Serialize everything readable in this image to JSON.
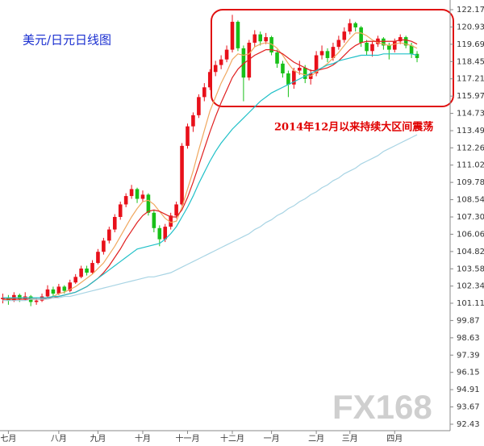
{
  "chart_data": {
    "type": "candlestick",
    "title": "美元/日元日线图",
    "title_color": "#1a2fd0",
    "annotation": "2014年12月以来持续大区间震荡",
    "annotation_color": "#e00000",
    "watermark": "FX168",
    "up_color": "#e8101a",
    "down_color": "#18c018",
    "ylim": [
      92.43,
      122.17
    ],
    "yticks": [
      122.17,
      {
        "value": 120.93,
        "label": "120.93"
      },
      119.69,
      118.45,
      117.21,
      115.97,
      114.73,
      113.49,
      112.26,
      111.02,
      109.78,
      108.54,
      {
        "value": 107.3,
        "label": "107.30"
      },
      106.06,
      104.82,
      103.58,
      102.34,
      101.11,
      99.87,
      98.63,
      97.39,
      96.15,
      94.91,
      93.67,
      92.43
    ],
    "categories": [
      null,
      "七月",
      null,
      null,
      null,
      null,
      null,
      null,
      null,
      null,
      "八月",
      null,
      null,
      null,
      null,
      null,
      null,
      "九月",
      null,
      null,
      null,
      null,
      null,
      null,
      null,
      "十月",
      null,
      null,
      null,
      null,
      null,
      null,
      null,
      "十一月",
      null,
      null,
      null,
      null,
      null,
      null,
      null,
      "十二月",
      null,
      null,
      null,
      null,
      null,
      null,
      "一月",
      null,
      null,
      null,
      null,
      null,
      null,
      null,
      "二月",
      null,
      null,
      null,
      null,
      null,
      "三月",
      null,
      null,
      null,
      null,
      null,
      null,
      null,
      "四月",
      null,
      null,
      null,
      null
    ],
    "ohlc": [
      [
        101.4,
        101.8,
        101.1,
        101.5
      ],
      [
        101.5,
        101.7,
        101.0,
        101.3
      ],
      [
        101.3,
        101.9,
        101.2,
        101.7
      ],
      [
        101.7,
        101.8,
        101.2,
        101.4
      ],
      [
        101.4,
        101.9,
        101.3,
        101.6
      ],
      [
        101.6,
        101.7,
        100.9,
        101.2
      ],
      [
        101.2,
        101.5,
        101.0,
        101.3
      ],
      [
        101.3,
        101.8,
        101.2,
        101.6
      ],
      [
        101.6,
        102.4,
        101.5,
        102.1
      ],
      [
        102.1,
        102.3,
        101.6,
        101.8
      ],
      [
        101.8,
        102.5,
        101.7,
        102.3
      ],
      [
        102.3,
        102.4,
        101.8,
        102.0
      ],
      [
        102.0,
        102.8,
        101.9,
        102.6
      ],
      [
        102.6,
        103.2,
        102.5,
        103.0
      ],
      [
        103.0,
        103.8,
        102.9,
        103.6
      ],
      [
        103.6,
        103.8,
        103.1,
        103.3
      ],
      [
        103.3,
        104.2,
        103.2,
        104.0
      ],
      [
        104.0,
        105.0,
        103.9,
        104.8
      ],
      [
        104.8,
        105.8,
        104.6,
        105.6
      ],
      [
        105.6,
        106.6,
        105.4,
        106.4
      ],
      [
        106.4,
        107.5,
        106.2,
        107.3
      ],
      [
        107.3,
        108.4,
        107.1,
        108.2
      ],
      [
        108.2,
        109.0,
        108.0,
        108.8
      ],
      [
        108.8,
        109.6,
        108.6,
        109.3
      ],
      [
        109.3,
        109.4,
        108.3,
        108.6
      ],
      [
        108.6,
        109.2,
        108.4,
        108.9
      ],
      [
        108.9,
        109.0,
        107.4,
        107.6
      ],
      [
        107.6,
        107.8,
        106.2,
        106.5
      ],
      [
        106.5,
        106.7,
        105.2,
        105.7
      ],
      [
        105.7,
        106.8,
        105.5,
        106.6
      ],
      [
        106.6,
        107.6,
        106.4,
        107.4
      ],
      [
        107.4,
        108.4,
        107.2,
        108.2
      ],
      [
        108.2,
        112.6,
        108.1,
        112.4
      ],
      [
        112.4,
        114.0,
        112.2,
        113.8
      ],
      [
        113.8,
        114.8,
        113.4,
        114.6
      ],
      [
        114.6,
        116.1,
        114.4,
        115.9
      ],
      [
        115.9,
        116.9,
        115.6,
        116.6
      ],
      [
        116.6,
        117.9,
        116.4,
        117.7
      ],
      [
        117.7,
        118.5,
        117.4,
        118.2
      ],
      [
        118.2,
        118.9,
        117.9,
        118.6
      ],
      [
        118.6,
        119.6,
        118.4,
        119.3
      ],
      [
        119.3,
        121.8,
        119.1,
        121.3
      ],
      [
        121.3,
        121.4,
        119.2,
        119.4
      ],
      [
        119.4,
        119.6,
        115.6,
        117.3
      ],
      [
        117.3,
        120.0,
        117.1,
        119.8
      ],
      [
        119.8,
        120.7,
        119.5,
        120.4
      ],
      [
        120.4,
        120.6,
        119.6,
        119.9
      ],
      [
        119.9,
        120.5,
        119.7,
        120.2
      ],
      [
        120.2,
        120.3,
        118.9,
        119.1
      ],
      [
        119.1,
        119.3,
        118.0,
        118.3
      ],
      [
        118.3,
        118.5,
        117.3,
        117.6
      ],
      [
        117.6,
        117.8,
        115.9,
        116.8
      ],
      [
        116.8,
        118.0,
        116.5,
        117.8
      ],
      [
        117.8,
        118.5,
        117.5,
        118.0
      ],
      [
        118.0,
        118.2,
        116.9,
        117.2
      ],
      [
        117.2,
        117.9,
        116.8,
        117.6
      ],
      [
        117.6,
        119.2,
        117.4,
        118.9
      ],
      [
        118.9,
        119.6,
        118.6,
        119.2
      ],
      [
        119.2,
        119.4,
        118.4,
        118.7
      ],
      [
        118.7,
        119.8,
        118.5,
        119.5
      ],
      [
        119.5,
        120.3,
        119.3,
        120.0
      ],
      [
        120.0,
        120.9,
        119.8,
        120.6
      ],
      [
        120.6,
        121.5,
        120.4,
        121.2
      ],
      [
        121.2,
        121.3,
        120.6,
        120.9
      ],
      [
        120.9,
        121.0,
        119.5,
        119.8
      ],
      [
        119.8,
        120.0,
        118.9,
        119.2
      ],
      [
        119.2,
        119.9,
        118.8,
        119.7
      ],
      [
        119.7,
        120.3,
        119.5,
        120.1
      ],
      [
        120.1,
        120.2,
        119.3,
        119.6
      ],
      [
        119.6,
        119.8,
        118.6,
        119.3
      ],
      [
        119.3,
        120.1,
        119.1,
        119.9
      ],
      [
        119.9,
        120.4,
        119.7,
        120.2
      ],
      [
        120.2,
        120.3,
        119.4,
        119.6
      ],
      [
        119.6,
        119.8,
        118.7,
        119.0
      ],
      [
        119.0,
        119.2,
        118.4,
        118.7
      ]
    ],
    "series": [
      {
        "color": "#f0a860",
        "values": [
          101.4,
          101.4,
          101.5,
          101.5,
          101.5,
          101.5,
          101.4,
          101.4,
          101.5,
          101.6,
          101.8,
          101.9,
          102.1,
          102.3,
          102.6,
          102.9,
          103.2,
          103.6,
          104.0,
          104.6,
          105.2,
          105.9,
          106.6,
          107.3,
          107.9,
          108.4,
          108.5,
          108.2,
          107.7,
          107.2,
          106.9,
          107.0,
          108.0,
          109.3,
          110.6,
          112.1,
          113.5,
          114.9,
          115.9,
          116.9,
          117.7,
          118.6,
          119.0,
          118.9,
          119.0,
          119.5,
          119.7,
          119.8,
          119.7,
          119.4,
          118.9,
          118.3,
          117.8,
          117.6,
          117.5,
          117.4,
          117.7,
          118.0,
          118.3,
          118.7,
          119.1,
          119.6,
          120.1,
          120.5,
          120.5,
          120.3,
          120.0,
          119.8,
          119.7,
          119.6,
          119.7,
          119.8,
          119.7,
          119.6,
          119.4
        ]
      },
      {
        "color": "#e02020",
        "values": [
          101.4,
          101.4,
          101.4,
          101.4,
          101.4,
          101.4,
          101.4,
          101.4,
          101.5,
          101.5,
          101.6,
          101.7,
          101.8,
          101.9,
          102.1,
          102.3,
          102.6,
          102.9,
          103.3,
          103.8,
          104.4,
          105.0,
          105.7,
          106.3,
          106.9,
          107.4,
          107.7,
          107.8,
          107.7,
          107.5,
          107.3,
          107.3,
          107.8,
          108.7,
          109.8,
          111.0,
          112.2,
          113.4,
          114.5,
          115.5,
          116.4,
          117.3,
          117.9,
          118.3,
          118.6,
          118.9,
          119.1,
          119.3,
          119.3,
          119.2,
          119.0,
          118.7,
          118.4,
          118.2,
          118.0,
          117.8,
          117.8,
          117.9,
          118.0,
          118.2,
          118.5,
          118.9,
          119.3,
          119.6,
          119.8,
          119.9,
          119.9,
          119.9,
          119.9,
          119.9,
          119.9,
          120.0,
          120.0,
          119.9,
          119.7
        ]
      },
      {
        "color": "#20c0c8",
        "values": [
          101.5,
          101.5,
          101.5,
          101.5,
          101.5,
          101.5,
          101.5,
          101.5,
          101.5,
          101.6,
          101.6,
          101.7,
          101.8,
          101.9,
          102.1,
          102.3,
          102.6,
          102.9,
          103.2,
          103.5,
          103.8,
          104.1,
          104.4,
          104.7,
          105.0,
          105.1,
          105.2,
          105.3,
          105.4,
          105.7,
          106.1,
          106.6,
          107.3,
          108.0,
          108.8,
          109.7,
          110.5,
          111.3,
          112.0,
          112.6,
          113.1,
          113.6,
          114.0,
          114.4,
          114.8,
          115.2,
          115.6,
          115.9,
          116.2,
          116.4,
          116.6,
          116.8,
          117.0,
          117.2,
          117.4,
          117.6,
          117.8,
          118.0,
          118.2,
          118.3,
          118.5,
          118.6,
          118.7,
          118.8,
          118.9,
          118.9,
          118.9,
          118.9,
          119.0,
          119.0,
          119.0,
          119.0,
          119.0,
          119.0,
          118.9
        ]
      },
      {
        "color": "#a8d4e4",
        "values": [
          101.3,
          101.3,
          101.3,
          101.3,
          101.3,
          101.4,
          101.4,
          101.4,
          101.4,
          101.5,
          101.5,
          101.6,
          101.6,
          101.7,
          101.8,
          101.9,
          102.0,
          102.1,
          102.2,
          102.3,
          102.4,
          102.5,
          102.6,
          102.7,
          102.8,
          102.9,
          103.0,
          103.0,
          103.1,
          103.2,
          103.3,
          103.5,
          103.7,
          103.9,
          104.1,
          104.3,
          104.5,
          104.7,
          104.9,
          105.1,
          105.3,
          105.5,
          105.7,
          105.9,
          106.1,
          106.4,
          106.6,
          106.9,
          107.1,
          107.4,
          107.6,
          107.9,
          108.1,
          108.4,
          108.6,
          108.9,
          109.1,
          109.4,
          109.6,
          109.9,
          110.1,
          110.4,
          110.6,
          110.8,
          111.1,
          111.3,
          111.5,
          111.7,
          112.0,
          112.2,
          112.4,
          112.6,
          112.8,
          113.0,
          113.2
        ]
      }
    ]
  }
}
